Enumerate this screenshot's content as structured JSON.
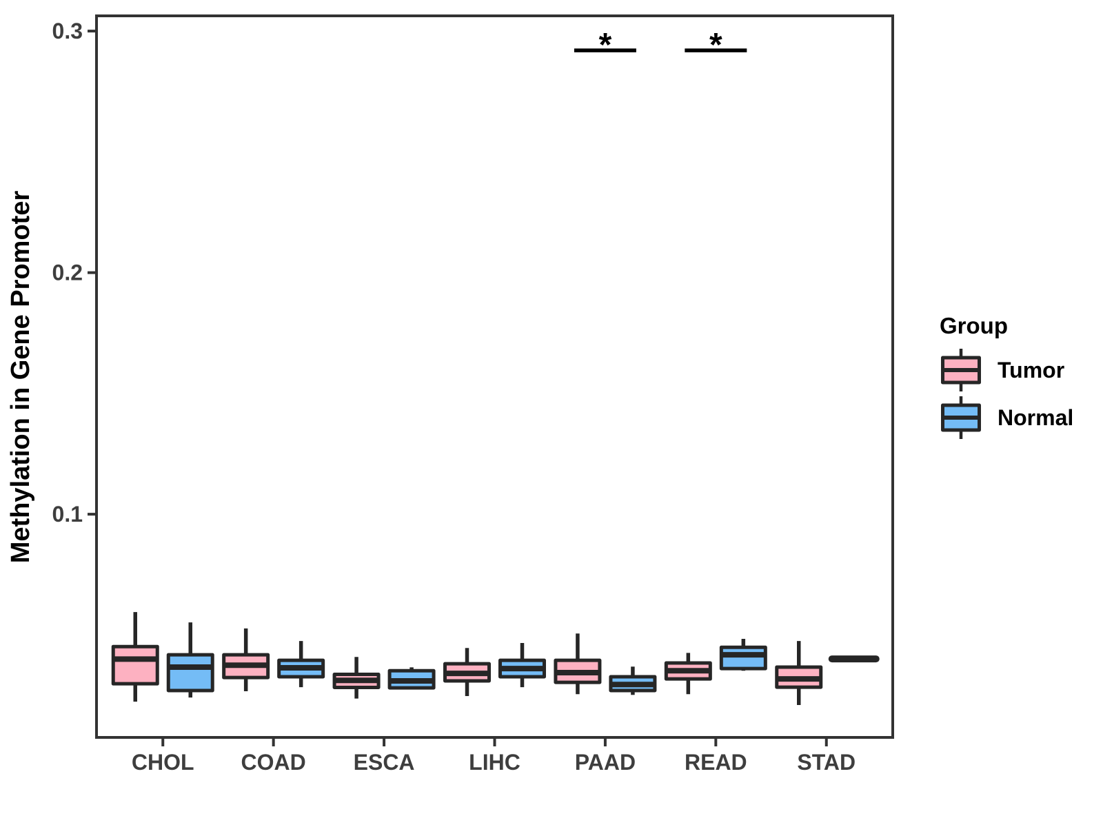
{
  "chart_data": {
    "type": "boxplot",
    "title": "",
    "xlabel": "",
    "ylabel": "Methylation in Gene Promoter",
    "categories": [
      "CHOL",
      "COAD",
      "ESCA",
      "LIHC",
      "PAAD",
      "READ",
      "STAD"
    ],
    "ylim": [
      0.0076,
      0.3063
    ],
    "y_ticks": [
      {
        "value": 0.1,
        "label": "0.1"
      },
      {
        "value": 0.2,
        "label": "0.2"
      },
      {
        "value": 0.3,
        "label": "0.3"
      }
    ],
    "grid": "off",
    "legend_position": "right",
    "series": [
      {
        "name": "Tumor",
        "color": "#FDB1C1",
        "boxes": [
          {
            "category": "CHOL",
            "whisker_low": 0.0224,
            "q1": 0.0298,
            "median": 0.04,
            "q3": 0.0452,
            "whisker_high": 0.0595
          },
          {
            "category": "COAD",
            "whisker_low": 0.0267,
            "q1": 0.0324,
            "median": 0.0375,
            "q3": 0.0418,
            "whisker_high": 0.0527
          },
          {
            "category": "ESCA",
            "whisker_low": 0.0237,
            "q1": 0.0283,
            "median": 0.0312,
            "q3": 0.0337,
            "whisker_high": 0.0409
          },
          {
            "category": "LIHC",
            "whisker_low": 0.0247,
            "q1": 0.031,
            "median": 0.0341,
            "q3": 0.0381,
            "whisker_high": 0.0446
          },
          {
            "category": "PAAD",
            "whisker_low": 0.0255,
            "q1": 0.0304,
            "median": 0.0344,
            "q3": 0.0395,
            "whisker_high": 0.0506
          },
          {
            "category": "READ",
            "whisker_low": 0.0255,
            "q1": 0.0318,
            "median": 0.0352,
            "q3": 0.0384,
            "whisker_high": 0.0426
          },
          {
            "category": "STAD",
            "whisker_low": 0.021,
            "q1": 0.0284,
            "median": 0.0318,
            "q3": 0.0367,
            "whisker_high": 0.0475
          }
        ]
      },
      {
        "name": "Normal",
        "color": "#74BCF6",
        "boxes": [
          {
            "category": "CHOL",
            "whisker_low": 0.0241,
            "q1": 0.027,
            "median": 0.0367,
            "q3": 0.0418,
            "whisker_high": 0.0552
          },
          {
            "category": "COAD",
            "whisker_low": 0.0284,
            "q1": 0.0327,
            "median": 0.0364,
            "q3": 0.0395,
            "whisker_high": 0.0475
          },
          {
            "category": "ESCA",
            "whisker_low": 0.0275,
            "q1": 0.0281,
            "median": 0.031,
            "q3": 0.0352,
            "whisker_high": 0.0366
          },
          {
            "category": "LIHC",
            "whisker_low": 0.0284,
            "q1": 0.0327,
            "median": 0.0361,
            "q3": 0.0395,
            "whisker_high": 0.0467
          },
          {
            "category": "PAAD",
            "whisker_low": 0.0252,
            "q1": 0.027,
            "median": 0.0295,
            "q3": 0.0327,
            "whisker_high": 0.0369
          },
          {
            "category": "READ",
            "whisker_low": 0.0352,
            "q1": 0.0361,
            "median": 0.0418,
            "q3": 0.0449,
            "whisker_high": 0.0484
          },
          {
            "category": "STAD",
            "whisker_low": 0.0401,
            "q1": 0.0401,
            "median": 0.0401,
            "q3": 0.0401,
            "whisker_high": 0.0401
          }
        ]
      }
    ],
    "significance": [
      {
        "category": "PAAD",
        "label": "*",
        "y_value": 0.292
      },
      {
        "category": "READ",
        "label": "*",
        "y_value": 0.292
      }
    ],
    "legend": {
      "title": "Group",
      "entries": [
        {
          "label": "Tumor",
          "color": "#FDB1C1"
        },
        {
          "label": "Normal",
          "color": "#74BCF6"
        }
      ]
    },
    "style": {
      "box_border_color": "#262626",
      "axis_color": "#333333",
      "tick_label_color": "#3E3E3E",
      "background": "#FFFFFF"
    }
  }
}
